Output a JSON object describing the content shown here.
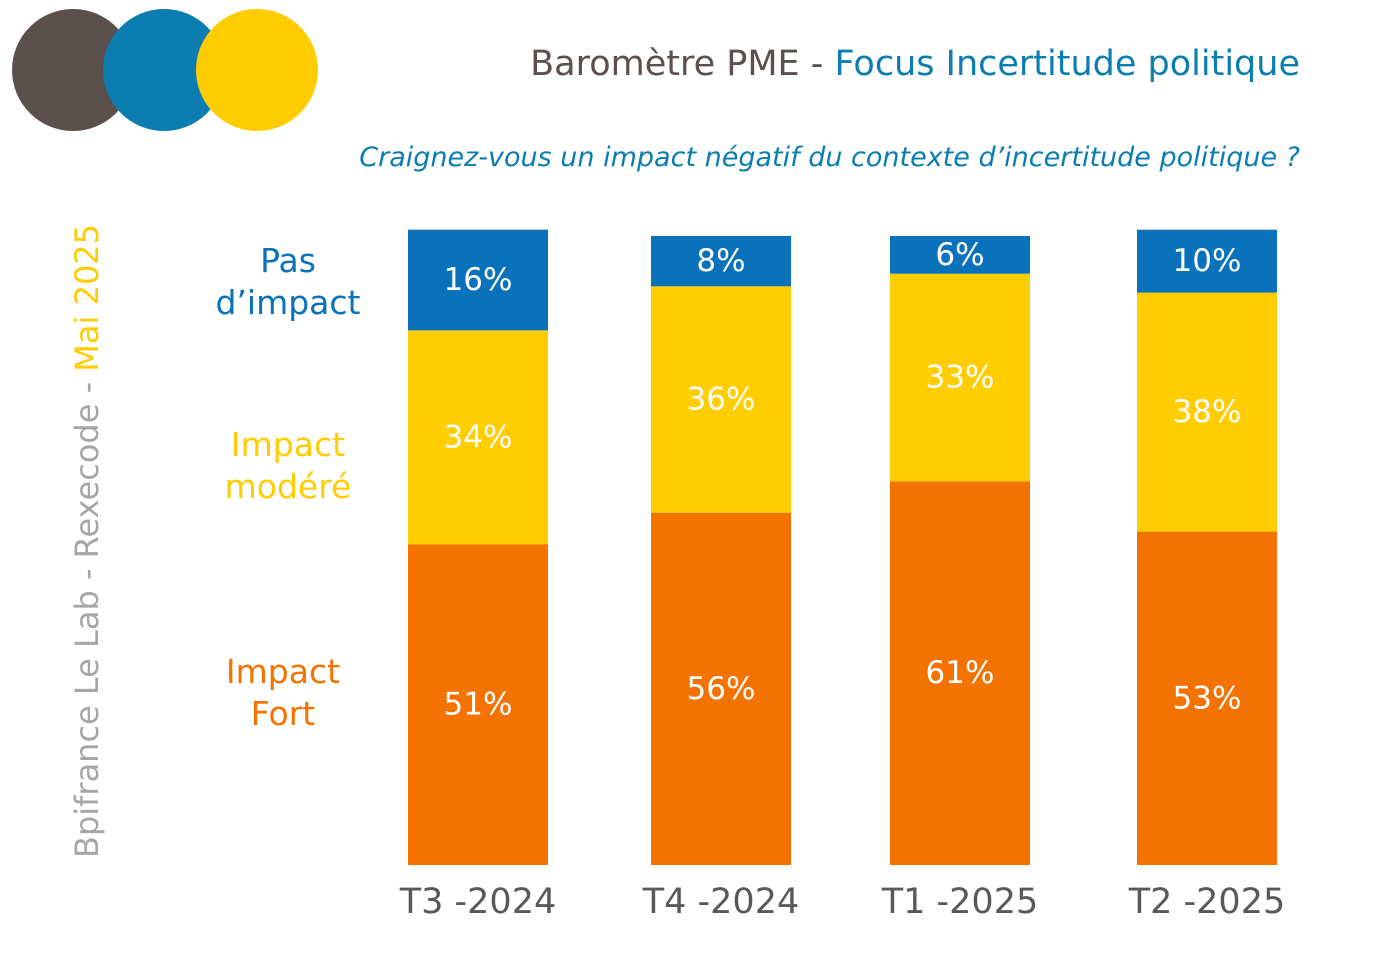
{
  "header": {
    "title_part1": "Baromètre PME - ",
    "title_part2": "Focus Incertitude politique",
    "question": "Craignez-vous un impact négatif du contexte d’incertitude politique ?"
  },
  "source": {
    "part1": "Bpifrance Le Lab - Rexecode - ",
    "part2": "Mai 2025"
  },
  "legend": {
    "pas_impact": [
      "Pas",
      "d’impact"
    ],
    "impact_modere": [
      "Impact",
      "modéré"
    ],
    "impact_fort": [
      "Impact",
      "Fort"
    ]
  },
  "colors": {
    "brown": "#5b504e",
    "blue": "#0b7db0",
    "yellow": "#ffcc00",
    "bar_blue": "#0a72bb",
    "bar_yellow": "#ffcd00",
    "bar_orange": "#f47200",
    "grey": "#a6a6a6",
    "axis_text": "#595959"
  },
  "chart_data": {
    "type": "bar",
    "stacked": true,
    "categories": [
      "T3 -2024",
      "T4 -2024",
      "T1 -2025",
      "T2 -2025"
    ],
    "series": [
      {
        "name": "Impact Fort",
        "values": [
          51,
          56,
          61,
          53
        ],
        "labels": [
          "51%",
          "56%",
          "61%",
          "53%"
        ]
      },
      {
        "name": "Impact modéré",
        "values": [
          34,
          36,
          33,
          38
        ],
        "labels": [
          "34%",
          "36%",
          "33%",
          "38%"
        ]
      },
      {
        "name": "Pas d’impact",
        "values": [
          16,
          8,
          6,
          10
        ],
        "labels": [
          "16%",
          "8%",
          "6%",
          "10%"
        ]
      }
    ],
    "legend_position": "left",
    "grid": false
  }
}
